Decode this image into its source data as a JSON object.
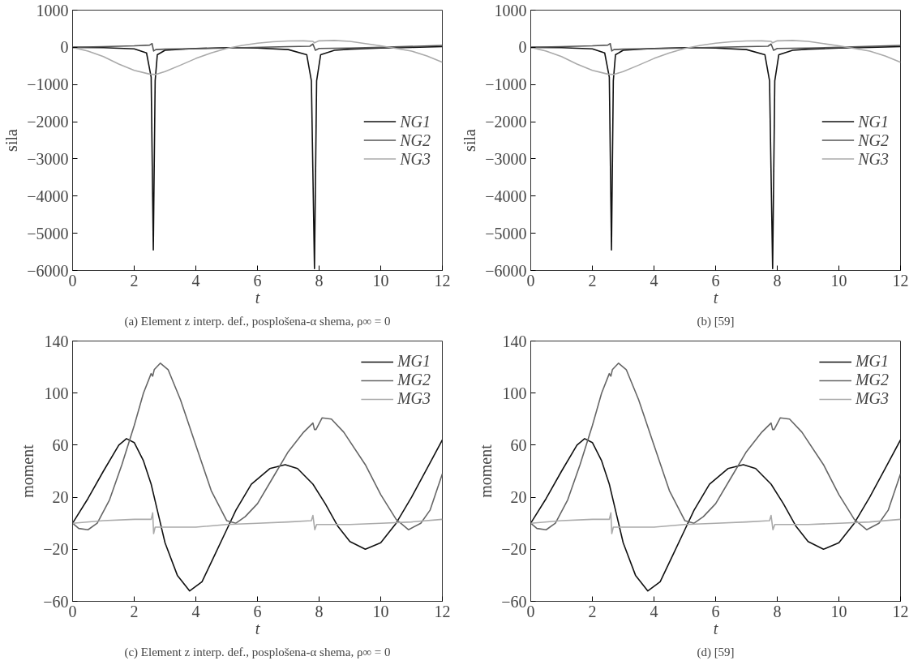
{
  "chart_data": [
    {
      "type": "line",
      "xlabel": "t",
      "ylabel": "sila",
      "xlim": [
        0,
        12
      ],
      "ylim": [
        -6000,
        1000
      ],
      "xticks": [
        0,
        2,
        4,
        6,
        8,
        10,
        12
      ],
      "yticks": [
        -6000,
        -5000,
        -4000,
        -3000,
        -2000,
        -1000,
        0,
        1000
      ],
      "grid": false,
      "legend": "right",
      "annotations": [
        "(a) Element z interp. def., posplošena-α shema, ρ∞ = 0"
      ],
      "series": [
        {
          "name": "NG1",
          "color": "#111111",
          "x": [
            0,
            1,
            2,
            2.4,
            2.55,
            2.62,
            2.68,
            2.75,
            3,
            4,
            5,
            6,
            7,
            7.6,
            7.75,
            7.85,
            7.92,
            8.05,
            8.5,
            9,
            10,
            11,
            12
          ],
          "values": [
            0,
            -10,
            -40,
            -150,
            -800,
            -5450,
            -900,
            -200,
            -80,
            -30,
            -10,
            -20,
            -60,
            -200,
            -900,
            -5950,
            -900,
            -200,
            -80,
            -50,
            -20,
            0,
            20
          ]
        },
        {
          "name": "NG2",
          "color": "#555555",
          "x": [
            0,
            1,
            2,
            2.5,
            2.58,
            2.63,
            2.7,
            3,
            5,
            7,
            7.7,
            7.8,
            7.88,
            8,
            9,
            10,
            12
          ],
          "values": [
            0,
            20,
            40,
            60,
            100,
            -100,
            -60,
            -50,
            -20,
            20,
            30,
            90,
            -80,
            -30,
            -20,
            0,
            50
          ]
        },
        {
          "name": "NG3",
          "color": "#aaaaaa",
          "x": [
            0,
            0.5,
            1,
            1.5,
            2,
            2.5,
            2.7,
            3,
            3.5,
            4,
            4.5,
            5,
            5.5,
            6,
            6.5,
            7,
            7.5,
            7.8,
            7.85,
            8,
            8.5,
            9,
            9.5,
            10,
            10.5,
            11,
            11.5,
            12
          ],
          "values": [
            0,
            -100,
            -250,
            -450,
            -620,
            -720,
            -730,
            -650,
            -480,
            -300,
            -150,
            -30,
            50,
            110,
            150,
            170,
            175,
            160,
            120,
            175,
            185,
            160,
            100,
            40,
            -30,
            -100,
            -230,
            -400
          ]
        }
      ]
    },
    {
      "type": "line",
      "xlabel": "t",
      "ylabel": "sila",
      "xlim": [
        0,
        12
      ],
      "ylim": [
        -6000,
        1000
      ],
      "xticks": [
        0,
        2,
        4,
        6,
        8,
        10,
        12
      ],
      "yticks": [
        -6000,
        -5000,
        -4000,
        -3000,
        -2000,
        -1000,
        0,
        1000
      ],
      "grid": false,
      "legend": "right",
      "annotations": [
        "(b) [59]"
      ],
      "series": [
        {
          "name": "NG1",
          "color": "#111111",
          "x": [
            0,
            1,
            2,
            2.4,
            2.55,
            2.62,
            2.68,
            2.75,
            3,
            4,
            5,
            6,
            7,
            7.6,
            7.75,
            7.85,
            7.92,
            8.05,
            8.5,
            9,
            10,
            11,
            12
          ],
          "values": [
            0,
            -10,
            -40,
            -150,
            -800,
            -5450,
            -900,
            -200,
            -80,
            -30,
            -10,
            -20,
            -60,
            -200,
            -900,
            -5950,
            -900,
            -200,
            -80,
            -50,
            -20,
            0,
            20
          ]
        },
        {
          "name": "NG2",
          "color": "#555555",
          "x": [
            0,
            1,
            2,
            2.5,
            2.58,
            2.63,
            2.7,
            3,
            5,
            7,
            7.7,
            7.8,
            7.88,
            8,
            9,
            10,
            12
          ],
          "values": [
            0,
            20,
            40,
            60,
            100,
            -100,
            -60,
            -50,
            -20,
            20,
            30,
            90,
            -80,
            -30,
            -20,
            0,
            50
          ]
        },
        {
          "name": "NG3",
          "color": "#aaaaaa",
          "x": [
            0,
            0.5,
            1,
            1.5,
            2,
            2.5,
            2.7,
            3,
            3.5,
            4,
            4.5,
            5,
            5.5,
            6,
            6.5,
            7,
            7.5,
            7.8,
            7.85,
            8,
            8.5,
            9,
            9.5,
            10,
            10.5,
            11,
            11.5,
            12
          ],
          "values": [
            0,
            -100,
            -250,
            -450,
            -620,
            -720,
            -730,
            -650,
            -480,
            -300,
            -150,
            -30,
            50,
            110,
            150,
            170,
            175,
            160,
            120,
            175,
            185,
            160,
            100,
            40,
            -30,
            -100,
            -230,
            -400
          ]
        }
      ]
    },
    {
      "type": "line",
      "xlabel": "t",
      "ylabel": "moment",
      "xlim": [
        0,
        12
      ],
      "ylim": [
        -60,
        140
      ],
      "xticks": [
        0,
        2,
        4,
        6,
        8,
        10,
        12
      ],
      "yticks": [
        -60,
        -20,
        20,
        60,
        100,
        140
      ],
      "grid": false,
      "legend": "top right",
      "annotations": [
        "(c) Element z interp. def., posplošena-α shema, ρ∞ = 0"
      ],
      "series": [
        {
          "name": "MG1",
          "color": "#111111",
          "x": [
            0,
            0.5,
            1,
            1.5,
            1.75,
            2,
            2.3,
            2.55,
            2.8,
            3,
            3.4,
            3.8,
            4.2,
            4.6,
            5,
            5.3,
            5.8,
            6.4,
            6.9,
            7.3,
            7.8,
            8.2,
            8.6,
            9,
            9.5,
            10,
            10.5,
            11,
            11.5,
            12
          ],
          "values": [
            0,
            19,
            40,
            60,
            65,
            62,
            48,
            30,
            5,
            -15,
            -40,
            -52,
            -45,
            -25,
            -5,
            10,
            30,
            42,
            45,
            42,
            30,
            15,
            -2,
            -14,
            -20,
            -15,
            0,
            20,
            42,
            64
          ]
        },
        {
          "name": "MG2",
          "color": "#666666",
          "x": [
            0,
            0.2,
            0.5,
            0.8,
            1.2,
            1.6,
            2,
            2.3,
            2.55,
            2.6,
            2.65,
            2.85,
            3.1,
            3.5,
            4,
            4.5,
            5,
            5.3,
            5.6,
            6,
            6.5,
            7,
            7.5,
            7.8,
            7.85,
            7.9,
            8.1,
            8.4,
            8.8,
            9.5,
            10,
            10.5,
            10.9,
            11.3,
            11.6,
            12
          ],
          "values": [
            0,
            -4,
            -5,
            0,
            18,
            45,
            75,
            100,
            115,
            113,
            118,
            123,
            118,
            95,
            60,
            25,
            2,
            0,
            5,
            15,
            35,
            55,
            70,
            77,
            72,
            72,
            81,
            80,
            70,
            45,
            22,
            3,
            -5,
            0,
            10,
            38
          ]
        },
        {
          "name": "MG3",
          "color": "#aaaaaa",
          "x": [
            0,
            1,
            2,
            2.55,
            2.6,
            2.63,
            2.68,
            3,
            4,
            5,
            6,
            7,
            7.75,
            7.8,
            7.86,
            7.92,
            9,
            10,
            11,
            12
          ],
          "values": [
            0,
            2,
            3,
            3,
            8,
            -8,
            -3,
            -3,
            -3,
            -1,
            0,
            1,
            2,
            6,
            -5,
            -1,
            -1,
            0,
            1,
            3
          ]
        }
      ]
    },
    {
      "type": "line",
      "xlabel": "t",
      "ylabel": "moment",
      "xlim": [
        0,
        12
      ],
      "ylim": [
        -60,
        140
      ],
      "xticks": [
        0,
        2,
        4,
        6,
        8,
        10,
        12
      ],
      "yticks": [
        -60,
        -20,
        20,
        60,
        100,
        140
      ],
      "grid": false,
      "legend": "top right",
      "annotations": [
        "(d) [59]"
      ],
      "series": [
        {
          "name": "MG1",
          "color": "#111111",
          "x": [
            0,
            0.5,
            1,
            1.5,
            1.75,
            2,
            2.3,
            2.55,
            2.8,
            3,
            3.4,
            3.8,
            4.2,
            4.6,
            5,
            5.3,
            5.8,
            6.4,
            6.9,
            7.3,
            7.8,
            8.2,
            8.6,
            9,
            9.5,
            10,
            10.5,
            11,
            11.5,
            12
          ],
          "values": [
            0,
            19,
            40,
            60,
            65,
            62,
            48,
            30,
            5,
            -15,
            -40,
            -52,
            -45,
            -25,
            -5,
            10,
            30,
            42,
            45,
            42,
            30,
            15,
            -2,
            -14,
            -20,
            -15,
            0,
            20,
            42,
            64
          ]
        },
        {
          "name": "MG2",
          "color": "#666666",
          "x": [
            0,
            0.2,
            0.5,
            0.8,
            1.2,
            1.6,
            2,
            2.3,
            2.55,
            2.6,
            2.65,
            2.85,
            3.1,
            3.5,
            4,
            4.5,
            5,
            5.3,
            5.6,
            6,
            6.5,
            7,
            7.5,
            7.8,
            7.85,
            7.9,
            8.1,
            8.4,
            8.8,
            9.5,
            10,
            10.5,
            10.9,
            11.3,
            11.6,
            12
          ],
          "values": [
            0,
            -4,
            -5,
            0,
            18,
            45,
            75,
            100,
            115,
            113,
            118,
            123,
            118,
            95,
            60,
            25,
            2,
            0,
            5,
            15,
            35,
            55,
            70,
            77,
            72,
            72,
            81,
            80,
            70,
            45,
            22,
            3,
            -5,
            0,
            10,
            38
          ]
        },
        {
          "name": "MG3",
          "color": "#aaaaaa",
          "x": [
            0,
            1,
            2,
            2.55,
            2.6,
            2.63,
            2.68,
            3,
            4,
            5,
            6,
            7,
            7.75,
            7.8,
            7.86,
            7.92,
            9,
            10,
            11,
            12
          ],
          "values": [
            0,
            2,
            3,
            3,
            8,
            -8,
            -3,
            -3,
            -3,
            -1,
            0,
            1,
            2,
            6,
            -5,
            -1,
            -1,
            0,
            1,
            3
          ]
        }
      ]
    }
  ]
}
